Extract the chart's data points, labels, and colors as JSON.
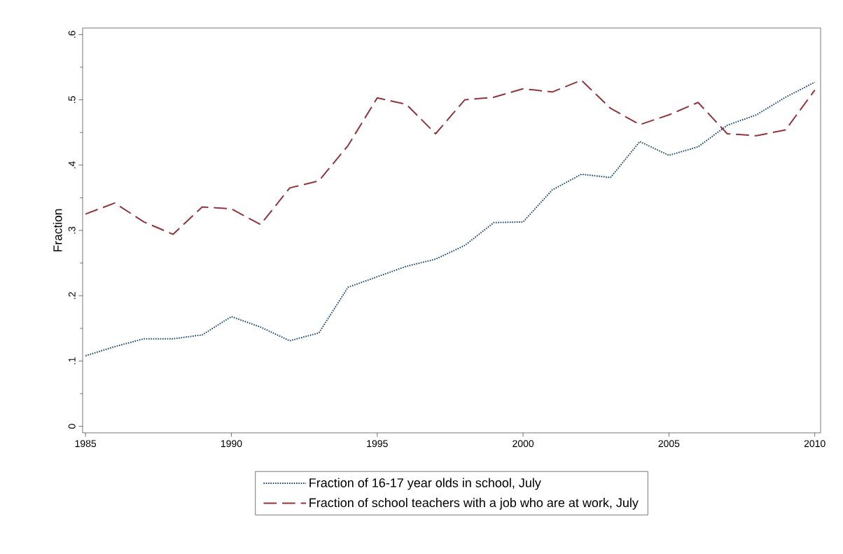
{
  "chart_data": {
    "type": "line",
    "ylabel": "Fraction",
    "x": [
      1985,
      1986,
      1987,
      1988,
      1989,
      1990,
      1991,
      1992,
      1993,
      1994,
      1995,
      1996,
      1997,
      1998,
      1999,
      2000,
      2001,
      2002,
      2003,
      2004,
      2005,
      2006,
      2007,
      2008,
      2009,
      2010
    ],
    "series": [
      {
        "name": "Fraction of 16-17 year olds in school, July",
        "color": "#1a476f",
        "line_style": "dotted",
        "values": [
          0.108,
          0.122,
          0.134,
          0.134,
          0.14,
          0.168,
          0.152,
          0.131,
          0.143,
          0.213,
          0.229,
          0.245,
          0.256,
          0.277,
          0.312,
          0.313,
          0.362,
          0.386,
          0.381,
          0.436,
          0.415,
          0.428,
          0.461,
          0.477,
          0.504,
          0.527
        ]
      },
      {
        "name": "Fraction of school teachers with a job who are at work, July",
        "color": "#90353b",
        "line_style": "dashed",
        "values": [
          0.325,
          0.342,
          0.313,
          0.294,
          0.336,
          0.333,
          0.309,
          0.365,
          0.376,
          0.43,
          0.503,
          0.493,
          0.448,
          0.5,
          0.504,
          0.517,
          0.512,
          0.53,
          0.487,
          0.462,
          0.477,
          0.496,
          0.448,
          0.445,
          0.454,
          0.515
        ]
      }
    ],
    "xlim": [
      1984.9,
      2010.2
    ],
    "ylim": [
      -0.01,
      0.61
    ],
    "xticks": [
      1985,
      1990,
      1995,
      2000,
      2005,
      2010
    ],
    "yticks": [
      0,
      {
        "value": 0.1,
        "label": ".1"
      },
      {
        "value": 0.2,
        "label": ".2"
      },
      {
        "value": 0.3,
        "label": ".3"
      },
      {
        "value": 0.4,
        "label": ".4"
      },
      {
        "value": 0.5,
        "label": ".5"
      },
      {
        "value": 0.6,
        "label": ".6"
      }
    ],
    "grid": false,
    "legend": "bottom"
  }
}
